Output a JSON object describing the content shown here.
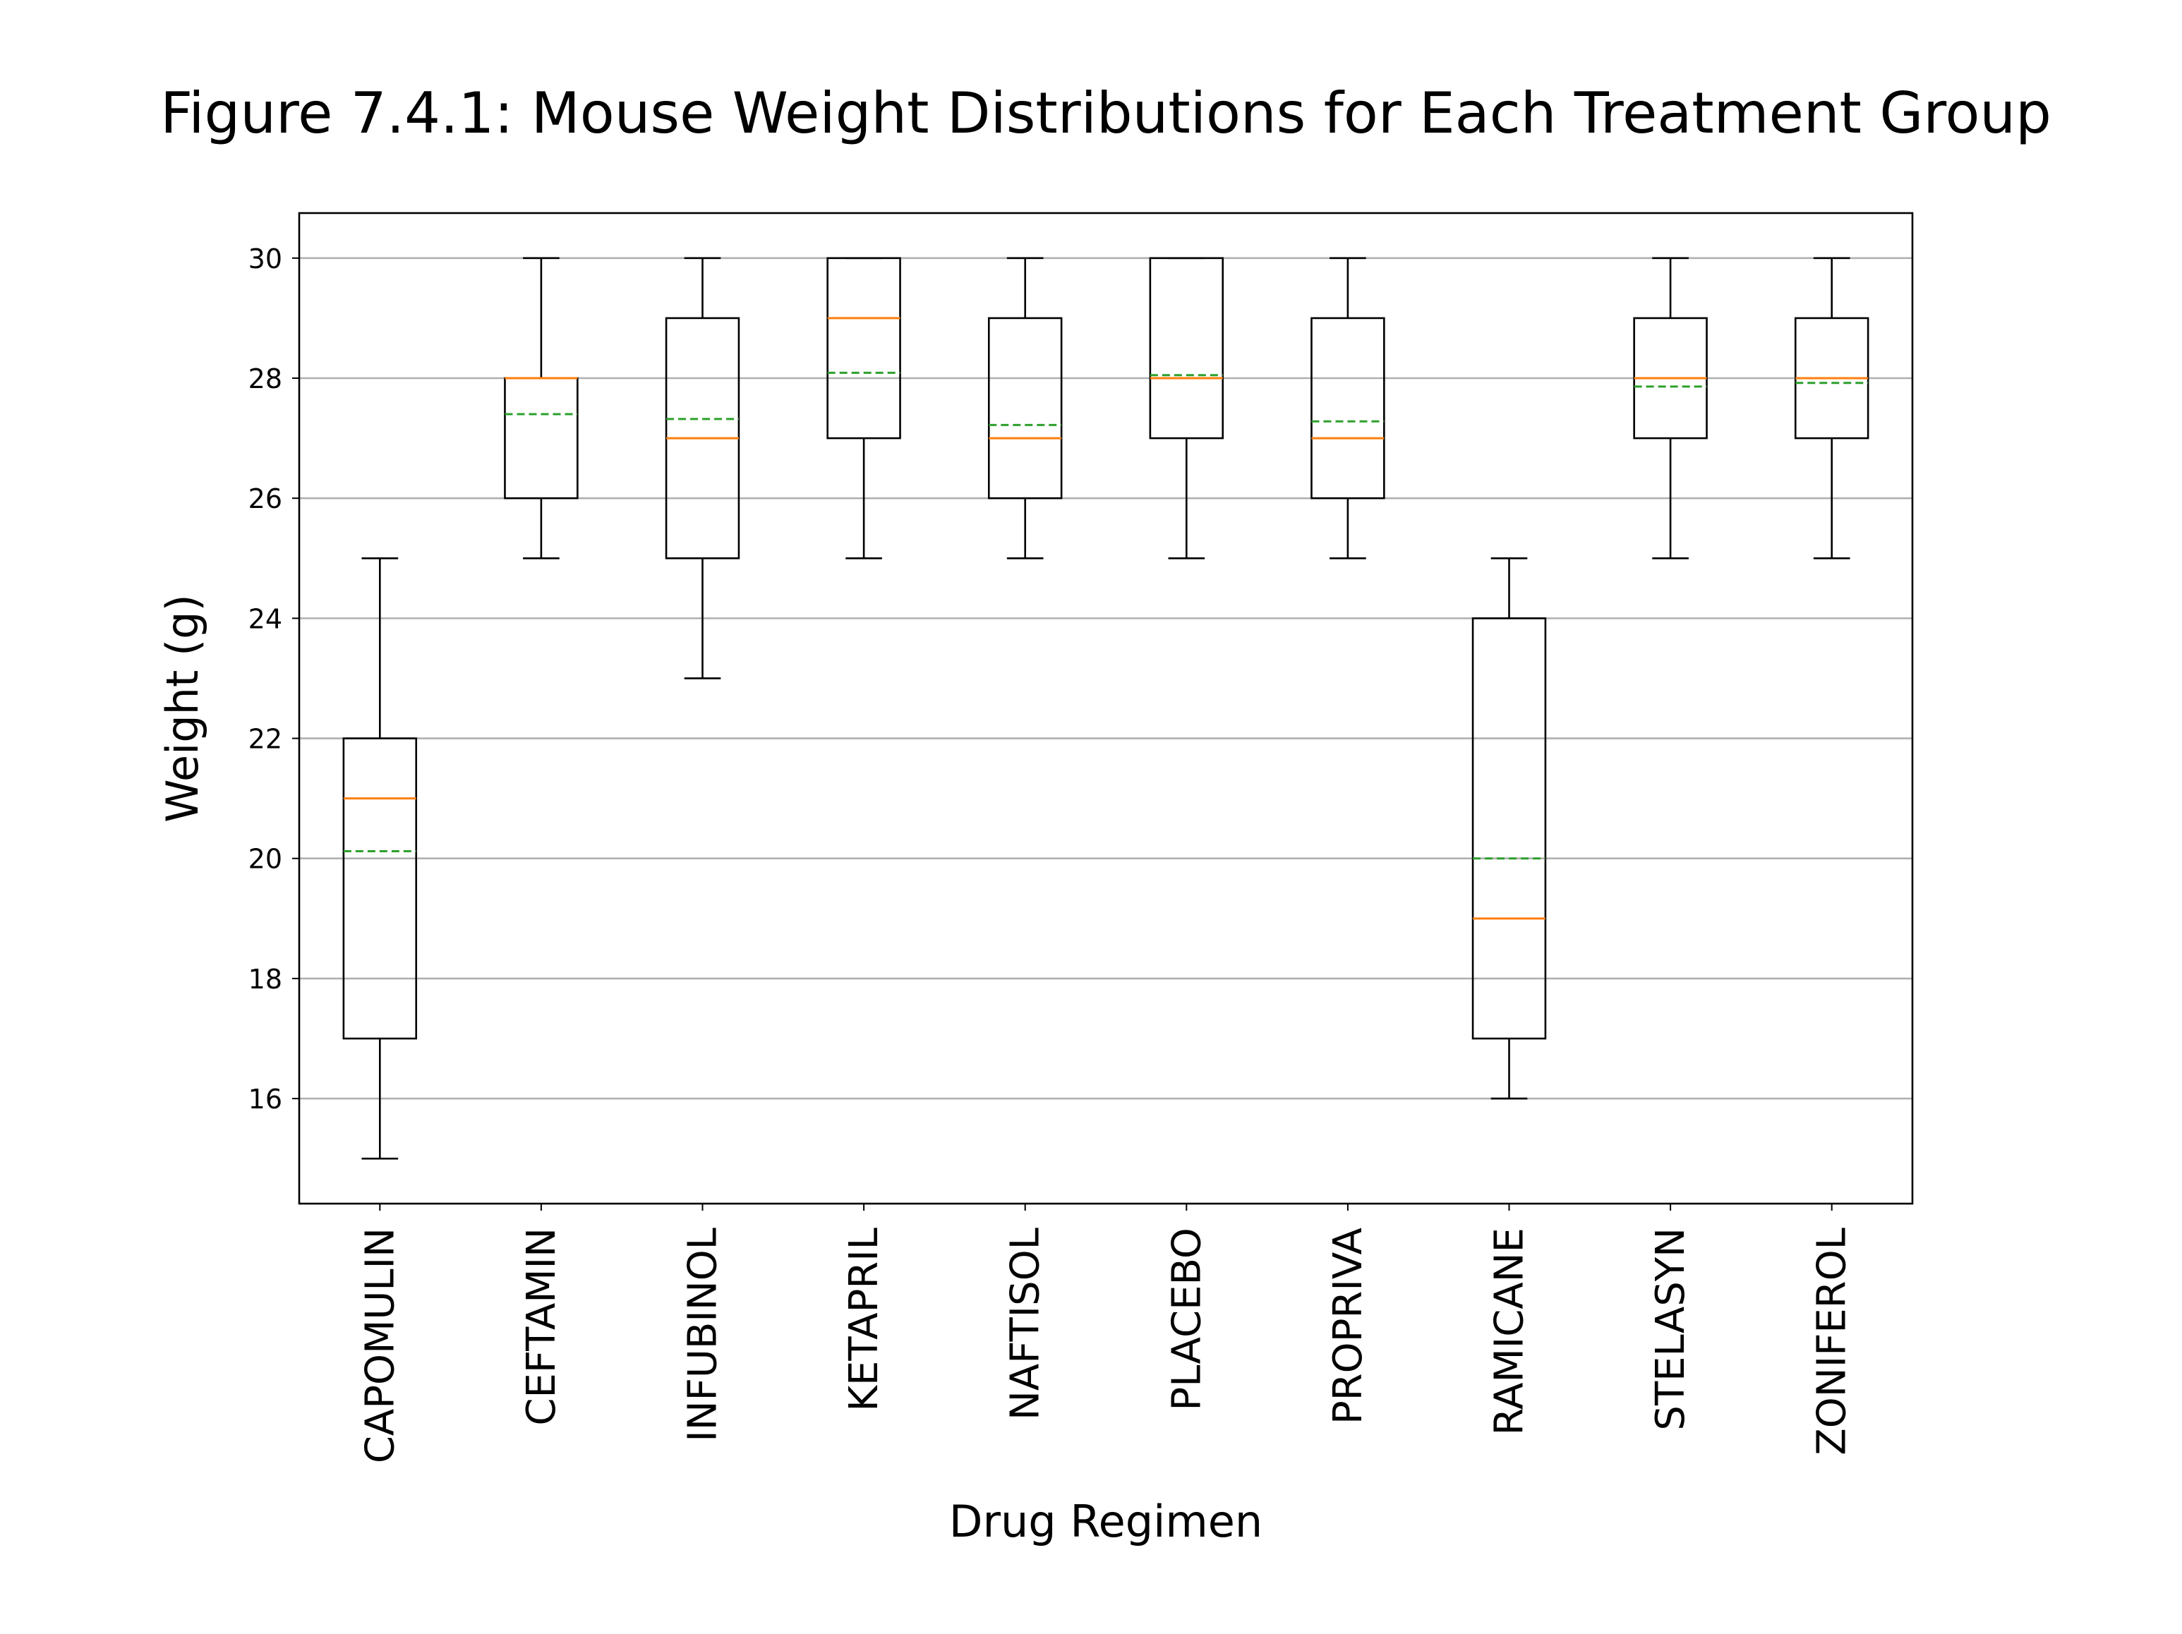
{
  "chart_data": {
    "type": "box",
    "title": "Figure 7.4.1: Mouse Weight Distributions for Each Treatment Group",
    "xlabel": "Drug Regimen",
    "ylabel": "Weight (g)",
    "ylim": [
      14.25,
      30.75
    ],
    "yticks": [
      16,
      18,
      20,
      22,
      24,
      26,
      28,
      30
    ],
    "grid": "horizontal",
    "show_means": true,
    "categories": [
      "CAPOMULIN",
      "CEFTAMIN",
      "INFUBINOL",
      "KETAPRIL",
      "NAFTISOL",
      "PLACEBO",
      "PROPRIVA",
      "RAMICANE",
      "STELASYN",
      "ZONIFEROL"
    ],
    "boxes": [
      {
        "label": "CAPOMULIN",
        "whisker_low": 15,
        "q1": 17,
        "median": 21,
        "mean": 20.12,
        "q3": 22,
        "whisker_high": 25
      },
      {
        "label": "CEFTAMIN",
        "whisker_low": 25,
        "q1": 26,
        "median": 28,
        "mean": 27.4,
        "q3": 28,
        "whisker_high": 30
      },
      {
        "label": "INFUBINOL",
        "whisker_low": 23,
        "q1": 25,
        "median": 27,
        "mean": 27.32,
        "q3": 29,
        "whisker_high": 30
      },
      {
        "label": "KETAPRIL",
        "whisker_low": 25,
        "q1": 27,
        "median": 29,
        "mean": 28.09,
        "q3": 30,
        "whisker_high": 30
      },
      {
        "label": "NAFTISOL",
        "whisker_low": 25,
        "q1": 26,
        "median": 27,
        "mean": 27.22,
        "q3": 29,
        "whisker_high": 30
      },
      {
        "label": "PLACEBO",
        "whisker_low": 25,
        "q1": 27,
        "median": 28,
        "mean": 28.05,
        "q3": 30,
        "whisker_high": 30
      },
      {
        "label": "PROPRIVA",
        "whisker_low": 25,
        "q1": 26,
        "median": 27,
        "mean": 27.28,
        "q3": 29,
        "whisker_high": 30
      },
      {
        "label": "RAMICANE",
        "whisker_low": 16,
        "q1": 17,
        "median": 19,
        "mean": 20.0,
        "q3": 24,
        "whisker_high": 25
      },
      {
        "label": "STELASYN",
        "whisker_low": 25,
        "q1": 27,
        "median": 28,
        "mean": 27.86,
        "q3": 29,
        "whisker_high": 30
      },
      {
        "label": "ZONIFEROL",
        "whisker_low": 25,
        "q1": 27,
        "median": 28,
        "mean": 27.92,
        "q3": 29,
        "whisker_high": 30
      }
    ],
    "colors": {
      "box": "#000000",
      "median": "#ff7f0e",
      "mean": "#2ca02c",
      "grid": "#b0b0b0"
    }
  }
}
